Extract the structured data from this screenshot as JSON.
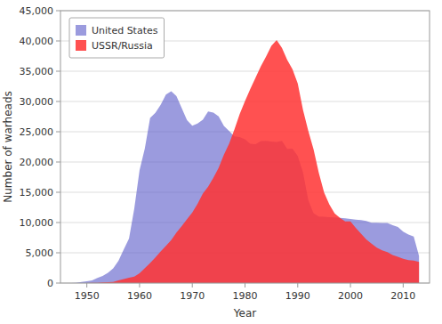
{
  "chart_data": {
    "type": "area",
    "xlabel": "Year",
    "ylabel": "Number of warheads",
    "x": [
      1945,
      1946,
      1947,
      1948,
      1949,
      1950,
      1951,
      1952,
      1953,
      1954,
      1955,
      1956,
      1957,
      1958,
      1959,
      1960,
      1961,
      1962,
      1963,
      1964,
      1965,
      1966,
      1967,
      1968,
      1969,
      1970,
      1971,
      1972,
      1973,
      1974,
      1975,
      1976,
      1977,
      1978,
      1979,
      1980,
      1981,
      1982,
      1983,
      1984,
      1985,
      1986,
      1987,
      1988,
      1989,
      1990,
      1991,
      1992,
      1993,
      1994,
      1995,
      1996,
      1997,
      1998,
      1999,
      2000,
      2001,
      2002,
      2003,
      2004,
      2005,
      2006,
      2007,
      2008,
      2009,
      2010,
      2011,
      2012,
      2013
    ],
    "series": [
      {
        "name": "United States",
        "color": "#6666cc",
        "values": [
          2,
          9,
          13,
          50,
          170,
          299,
          438,
          832,
          1169,
          1703,
          2422,
          3692,
          5543,
          7345,
          12298,
          18638,
          22229,
          27297,
          28133,
          29463,
          31139,
          31700,
          30893,
          28884,
          26910,
          26008,
          26365,
          27000,
          28335,
          28170,
          27519,
          25956,
          25099,
          24243,
          24107,
          23764,
          23031,
          22937,
          23454,
          23490,
          23368,
          23317,
          23490,
          22174,
          22217,
          21004,
          18306,
          13731,
          11529,
          10979,
          10953,
          10886,
          10832,
          10763,
          10685,
          10577,
          10491,
          10395,
          10240,
          9960,
          9962,
          9938,
          9938,
          9552,
          9273,
          8500,
          8000,
          7700,
          4500
        ]
      },
      {
        "name": "USSR/Russia",
        "color": "#ff3333",
        "values": [
          0,
          0,
          0,
          0,
          1,
          5,
          25,
          50,
          120,
          150,
          200,
          426,
          660,
          869,
          1060,
          1605,
          2471,
          3322,
          4238,
          5221,
          6129,
          7089,
          8339,
          9399,
          10538,
          11643,
          13092,
          14787,
          15915,
          17385,
          19055,
          21205,
          23044,
          25393,
          27935,
          30062,
          32049,
          33952,
          35804,
          37431,
          39197,
          40159,
          38859,
          36857,
          35318,
          32963,
          28595,
          25155,
          22110,
          18200,
          14978,
          12985,
          11500,
          10764,
          10201,
          10201,
          9126,
          8148,
          7200,
          6500,
          5830,
          5400,
          5100,
          4630,
          4350,
          4000,
          3800,
          3700,
          3500
        ]
      }
    ],
    "xlim": [
      1945,
      2015
    ],
    "xticks": [
      1950,
      1960,
      1970,
      1980,
      1990,
      2000,
      2010
    ],
    "ylim": [
      0,
      45000
    ],
    "yticks": [
      0,
      {
        "value": 5000,
        "label": "5,000"
      },
      {
        "value": 10000,
        "label": "10,000"
      },
      {
        "value": 15000,
        "label": "15,000"
      },
      {
        "value": 20000,
        "label": "20,000"
      },
      {
        "value": 25000,
        "label": "25,000"
      },
      {
        "value": 30000,
        "label": "30,000"
      },
      {
        "value": 35000,
        "label": "35,000"
      },
      {
        "value": 40000,
        "label": "40,000"
      },
      {
        "value": 45000,
        "label": "45,000"
      }
    ],
    "grid": true,
    "legend": "upper left"
  }
}
